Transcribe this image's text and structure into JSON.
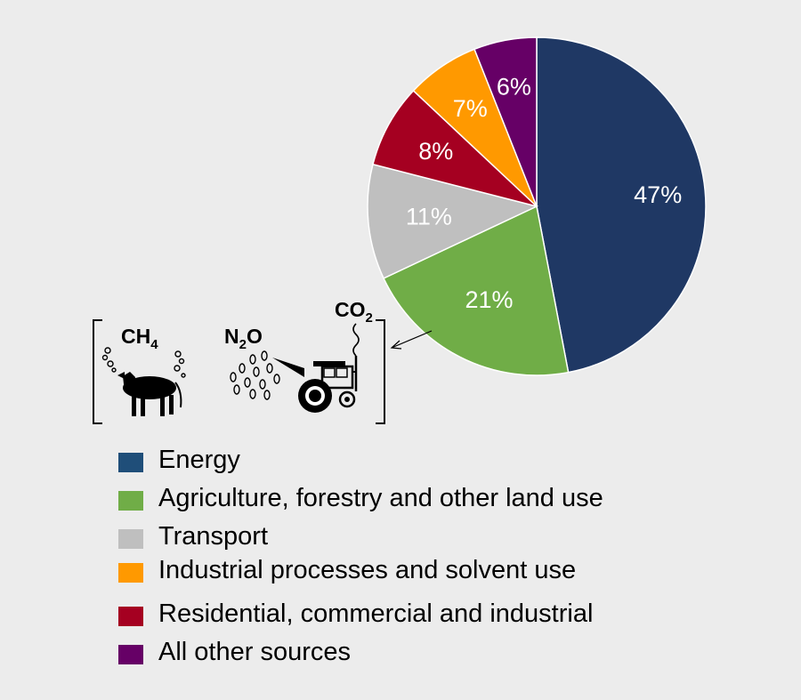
{
  "chart_data": {
    "type": "pie",
    "slices": [
      {
        "label": "Energy",
        "value": 47,
        "display": "47%",
        "color": "#1f3864"
      },
      {
        "label": "Agriculture, forestry and other land use",
        "value": 21,
        "display": "21%",
        "color": "#70ad47"
      },
      {
        "label": "Transport",
        "value": 11,
        "display": "11%",
        "color": "#bfbfbf"
      },
      {
        "label": "Residential, commercial and industrial",
        "value": 8,
        "display": "8%",
        "color": "#a50021"
      },
      {
        "label": "Industrial processes and solvent use",
        "value": 7,
        "display": "7%",
        "color": "#ff9900"
      },
      {
        "label": "All other sources",
        "value": 6,
        "display": "6%",
        "color": "#660066"
      }
    ],
    "legend": [
      {
        "label": "Energy",
        "color": "#1f4e79"
      },
      {
        "label": "Agriculture, forestry and other land use",
        "color": "#70ad47"
      },
      {
        "label": "Transport",
        "color": "#bfbfbf"
      },
      {
        "label": "Industrial processes and solvent use",
        "color": "#ff9900"
      },
      {
        "label": "Residential, commercial and industrial",
        "color": "#a50021"
      },
      {
        "label": "All other sources",
        "color": "#660066"
      }
    ]
  },
  "inset": {
    "ch4": {
      "base": "CH",
      "sub": "4"
    },
    "n2o": {
      "base": "N",
      "sub": "2",
      "tail": "O"
    },
    "co2": {
      "base": "CO",
      "sub": "2"
    }
  }
}
